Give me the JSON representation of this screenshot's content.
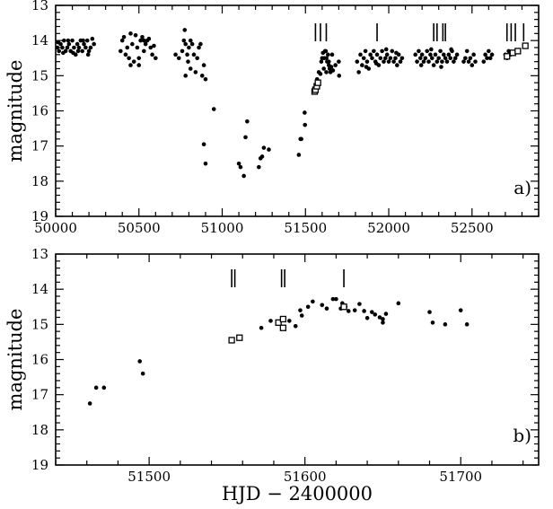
{
  "chart_data": [
    {
      "panel": "a",
      "type": "scatter",
      "panel_label": "a)",
      "ylabel": "magnitude",
      "xlabel": "",
      "xlim": [
        50000,
        52900
      ],
      "ylim": [
        19,
        13
      ],
      "y_inverted": true,
      "xticks": [
        50000,
        50500,
        51000,
        51500,
        52000,
        52500
      ],
      "yticks": [
        13,
        14,
        15,
        16,
        17,
        18,
        19
      ],
      "series": [
        {
          "marker": "filled-circle",
          "points": [
            [
              50010,
              14.2
            ],
            [
              50020,
              14.3
            ],
            [
              50030,
              14.1
            ],
            [
              50040,
              14.2
            ],
            [
              50050,
              14.0
            ],
            [
              50060,
              14.3
            ],
            [
              50070,
              14.2
            ],
            [
              50080,
              14.1
            ],
            [
              50090,
              14.3
            ],
            [
              50100,
              14.0
            ],
            [
              50110,
              14.2
            ],
            [
              50120,
              14.4
            ],
            [
              50130,
              14.1
            ],
            [
              50140,
              14.2
            ],
            [
              50150,
              14.0
            ],
            [
              50160,
              14.3
            ],
            [
              50170,
              14.1
            ],
            [
              50180,
              14.2
            ],
            [
              50190,
              14.0
            ],
            [
              50200,
              14.3
            ],
            [
              50210,
              14.2
            ],
            [
              50220,
              13.95
            ],
            [
              50230,
              14.1
            ],
            [
              50015,
              14.05
            ],
            [
              50045,
              14.35
            ],
            [
              50075,
              14.0
            ],
            [
              50105,
              14.35
            ],
            [
              50135,
              14.3
            ],
            [
              50165,
              14.0
            ],
            [
              50195,
              14.4
            ],
            [
              50390,
              14.3
            ],
            [
              50400,
              14.0
            ],
            [
              50410,
              13.9
            ],
            [
              50420,
              14.4
            ],
            [
              50430,
              14.2
            ],
            [
              50440,
              14.5
            ],
            [
              50450,
              13.8
            ],
            [
              50460,
              14.1
            ],
            [
              50470,
              14.6
            ],
            [
              50480,
              13.85
            ],
            [
              50490,
              14.2
            ],
            [
              50500,
              14.7
            ],
            [
              50510,
              14.0
            ],
            [
              50520,
              13.9
            ],
            [
              50530,
              14.3
            ],
            [
              50540,
              14.1
            ],
            [
              50550,
              14.0
            ],
            [
              50560,
              13.95
            ],
            [
              50570,
              14.2
            ],
            [
              50580,
              14.4
            ],
            [
              50590,
              14.15
            ],
            [
              50600,
              14.5
            ],
            [
              50450,
              14.7
            ],
            [
              50500,
              14.5
            ],
            [
              50530,
              14.0
            ],
            [
              50720,
              14.4
            ],
            [
              50740,
              14.5
            ],
            [
              50760,
              14.3
            ],
            [
              50770,
              14.0
            ],
            [
              50775,
              13.7
            ],
            [
              50780,
              14.1
            ],
            [
              50790,
              14.4
            ],
            [
              50795,
              14.6
            ],
            [
              50800,
              14.2
            ],
            [
              50810,
              14.8
            ],
            [
              50820,
              14.1
            ],
            [
              50830,
              14.4
            ],
            [
              50840,
              14.9
            ],
            [
              50850,
              14.5
            ],
            [
              50860,
              14.2
            ],
            [
              50870,
              14.1
            ],
            [
              50880,
              15.0
            ],
            [
              50890,
              14.7
            ],
            [
              50900,
              15.1
            ],
            [
              50780,
              15.0
            ],
            [
              50810,
              14.0
            ],
            [
              50890,
              16.95
            ],
            [
              50900,
              17.5
            ],
            [
              50950,
              15.95
            ],
            [
              51100,
              17.5
            ],
            [
              51110,
              17.6
            ],
            [
              51130,
              17.85
            ],
            [
              51140,
              16.75
            ],
            [
              51150,
              16.3
            ],
            [
              51220,
              17.6
            ],
            [
              51230,
              17.35
            ],
            [
              51240,
              17.3
            ],
            [
              51250,
              17.05
            ],
            [
              51280,
              17.1
            ],
            [
              51460,
              17.25
            ],
            [
              51470,
              16.8
            ],
            [
              51475,
              16.8
            ],
            [
              51495,
              16.05
            ],
            [
              51497,
              16.4
            ],
            [
              51570,
              15.1
            ],
            [
              51580,
              14.9
            ],
            [
              51590,
              14.95
            ],
            [
              51595,
              14.6
            ],
            [
              51600,
              14.5
            ],
            [
              51605,
              14.35
            ],
            [
              51612,
              14.5
            ],
            [
              51618,
              14.3
            ],
            [
              51622,
              14.3
            ],
            [
              51626,
              14.5
            ],
            [
              51630,
              14.6
            ],
            [
              51635,
              14.4
            ],
            [
              51640,
              14.7
            ],
            [
              51645,
              14.8
            ],
            [
              51650,
              14.9
            ],
            [
              51660,
              14.4
            ],
            [
              51680,
              14.7
            ],
            [
              51700,
              14.6
            ],
            [
              51702,
              15.0
            ],
            [
              51610,
              14.8
            ],
            [
              51625,
              14.9
            ],
            [
              51640,
              14.6
            ],
            [
              51655,
              14.75
            ],
            [
              51665,
              14.85
            ],
            [
              51810,
              14.6
            ],
            [
              51820,
              14.9
            ],
            [
              51830,
              14.4
            ],
            [
              51840,
              14.7
            ],
            [
              51850,
              14.5
            ],
            [
              51860,
              14.3
            ],
            [
              51870,
              14.6
            ],
            [
              51880,
              14.8
            ],
            [
              51890,
              14.4
            ],
            [
              51900,
              14.5
            ],
            [
              51910,
              14.3
            ],
            [
              51920,
              14.6
            ],
            [
              51930,
              14.4
            ],
            [
              51940,
              14.7
            ],
            [
              51950,
              14.5
            ],
            [
              51960,
              14.3
            ],
            [
              51970,
              14.6
            ],
            [
              51980,
              14.5
            ],
            [
              51990,
              14.4
            ],
            [
              52000,
              14.6
            ],
            [
              52010,
              14.5
            ],
            [
              52020,
              14.3
            ],
            [
              52030,
              14.6
            ],
            [
              52040,
              14.5
            ],
            [
              52050,
              14.7
            ],
            [
              52060,
              14.4
            ],
            [
              52070,
              14.6
            ],
            [
              52080,
              14.5
            ],
            [
              51865,
              14.75
            ],
            [
              51925,
              14.65
            ],
            [
              51985,
              14.25
            ],
            [
              52045,
              14.35
            ],
            [
              52160,
              14.4
            ],
            [
              52170,
              14.6
            ],
            [
              52180,
              14.3
            ],
            [
              52190,
              14.5
            ],
            [
              52200,
              14.4
            ],
            [
              52210,
              14.6
            ],
            [
              52220,
              14.5
            ],
            [
              52230,
              14.3
            ],
            [
              52240,
              14.6
            ],
            [
              52250,
              14.4
            ],
            [
              52260,
              14.5
            ],
            [
              52270,
              14.7
            ],
            [
              52280,
              14.4
            ],
            [
              52290,
              14.6
            ],
            [
              52300,
              14.5
            ],
            [
              52310,
              14.3
            ],
            [
              52320,
              14.6
            ],
            [
              52330,
              14.4
            ],
            [
              52340,
              14.5
            ],
            [
              52350,
              14.6
            ],
            [
              52360,
              14.4
            ],
            [
              52370,
              14.5
            ],
            [
              52380,
              14.3
            ],
            [
              52390,
              14.6
            ],
            [
              52400,
              14.5
            ],
            [
              52410,
              14.4
            ],
            [
              52195,
              14.7
            ],
            [
              52255,
              14.25
            ],
            [
              52315,
              14.75
            ],
            [
              52375,
              14.25
            ],
            [
              52450,
              14.6
            ],
            [
              52460,
              14.5
            ],
            [
              52470,
              14.3
            ],
            [
              52480,
              14.6
            ],
            [
              52490,
              14.5
            ],
            [
              52500,
              14.7
            ],
            [
              52510,
              14.4
            ],
            [
              52520,
              14.6
            ],
            [
              52570,
              14.6
            ],
            [
              52580,
              14.4
            ],
            [
              52590,
              14.5
            ],
            [
              52600,
              14.3
            ],
            [
              52610,
              14.5
            ],
            [
              52620,
              14.4
            ],
            [
              52700,
              14.4
            ],
            [
              52710,
              14.5
            ],
            [
              52720,
              14.3
            ],
            [
              52730,
              14.4
            ]
          ]
        },
        {
          "marker": "open-square",
          "points": [
            [
              51555,
              15.45
            ],
            [
              51560,
              15.4
            ],
            [
              51568,
              15.3
            ],
            [
              51575,
              15.2
            ],
            [
              52710,
              14.45
            ],
            [
              52745,
              14.35
            ],
            [
              52775,
              14.3
            ],
            [
              52820,
              14.15
            ]
          ]
        }
      ],
      "tick_marks": [
        51560,
        51590,
        51625,
        51930,
        52270,
        52290,
        52325,
        52340,
        52710,
        52735,
        52760,
        52810
      ]
    },
    {
      "panel": "b",
      "type": "scatter",
      "panel_label": "b)",
      "ylabel": "magnitude",
      "xlabel": "HJD − 2400000",
      "xlim": [
        51440,
        51750
      ],
      "ylim": [
        19,
        13
      ],
      "y_inverted": true,
      "xticks": [
        51500,
        51600,
        51700
      ],
      "yticks": [
        13,
        14,
        15,
        16,
        17,
        18,
        19
      ],
      "series": [
        {
          "marker": "filled-circle",
          "points": [
            [
              51462,
              17.25
            ],
            [
              51466,
              16.8
            ],
            [
              51471,
              16.8
            ],
            [
              51494,
              16.05
            ],
            [
              51496,
              16.4
            ],
            [
              51572,
              15.1
            ],
            [
              51578,
              14.9
            ],
            [
              51583,
              14.95
            ],
            [
              51590,
              14.9
            ],
            [
              51594,
              15.05
            ],
            [
              51597,
              14.6
            ],
            [
              51598,
              14.75
            ],
            [
              51602,
              14.5
            ],
            [
              51605,
              14.35
            ],
            [
              51611,
              14.45
            ],
            [
              51614,
              14.55
            ],
            [
              51618,
              14.28
            ],
            [
              51620,
              14.28
            ],
            [
              51623,
              14.55
            ],
            [
              51624,
              14.4
            ],
            [
              51626,
              14.5
            ],
            [
              51628,
              14.62
            ],
            [
              51632,
              14.6
            ],
            [
              51635,
              14.42
            ],
            [
              51638,
              14.62
            ],
            [
              51640,
              14.82
            ],
            [
              51643,
              14.65
            ],
            [
              51645,
              14.72
            ],
            [
              51648,
              14.8
            ],
            [
              51650,
              14.95
            ],
            [
              51652,
              14.7
            ],
            [
              51660,
              14.4
            ],
            [
              51680,
              14.65
            ],
            [
              51682,
              14.95
            ],
            [
              51690,
              15.0
            ],
            [
              51700,
              14.6
            ],
            [
              51704,
              15.0
            ],
            [
              51650,
              14.85
            ]
          ]
        },
        {
          "marker": "open-square",
          "points": [
            [
              51553,
              15.45
            ],
            [
              51558,
              15.38
            ],
            [
              51583,
              14.95
            ],
            [
              51586,
              14.85
            ],
            [
              51586,
              15.1
            ],
            [
              51625,
              14.5
            ]
          ]
        }
      ],
      "tick_marks": [
        51553,
        51555,
        51585,
        51587,
        51625
      ]
    }
  ]
}
